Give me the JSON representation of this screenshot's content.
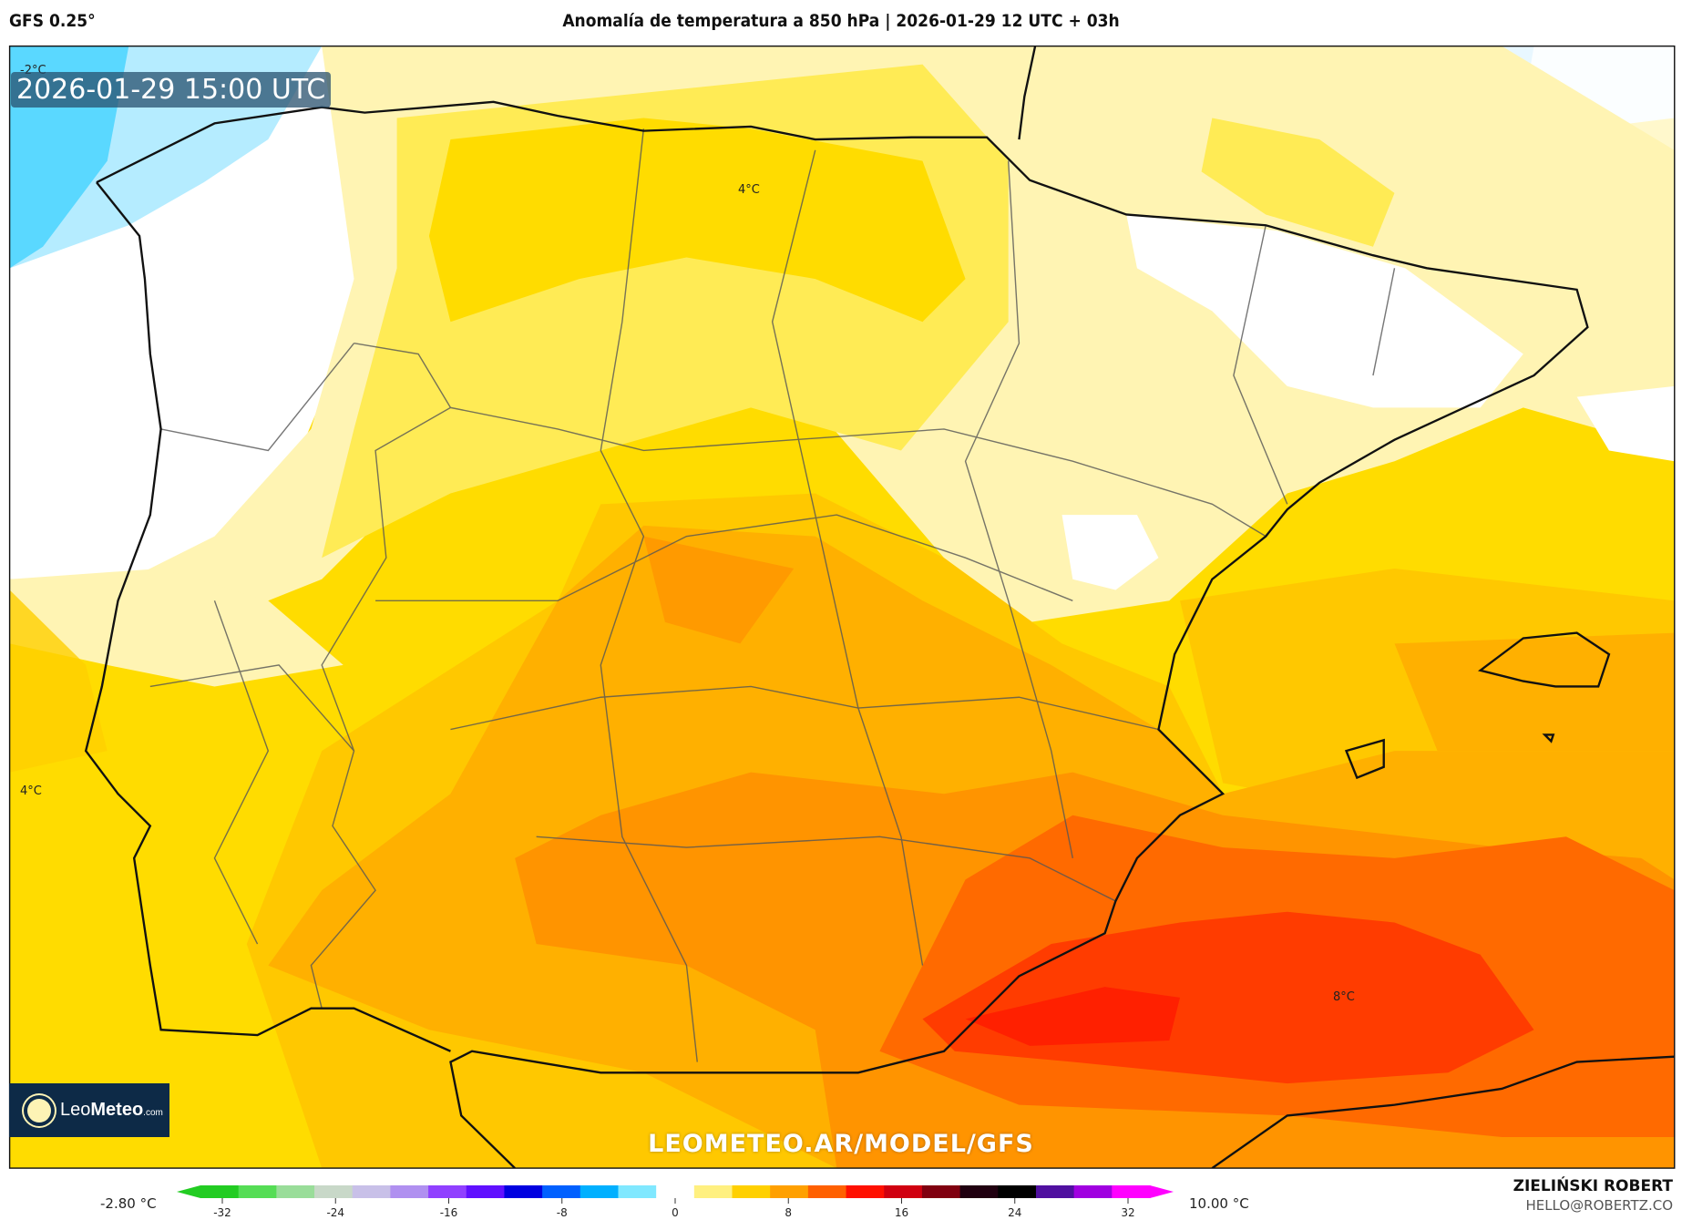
{
  "header": {
    "model": "GFS 0.25°",
    "title": "Anomalía de temperatura a 850 hPa | 2026-01-29 12 UTC + 03h"
  },
  "map": {
    "valid_time": "2026-01-29 15:00 UTC",
    "watermark": "LEOMETEO.AR/MODEL/GFS",
    "contour_labels": [
      "-2°C",
      "4°C",
      "4°C",
      "8°C"
    ],
    "colors": {
      "cyan": "#5ad8ff",
      "light_blue": "#b5ecff",
      "pale_blue": "#e8f7ff",
      "white": "#ffffff",
      "pale_yellow": "#fff4b3",
      "light_yellow": "#ffeb55",
      "yellow": "#ffdc00",
      "gold": "#ffc800",
      "orange": "#ffb000",
      "dark_orange": "#ff9400",
      "orange_red": "#ff6a00",
      "red": "#ff3c00",
      "deep_red": "#ff2000"
    }
  },
  "logo": {
    "brand_light": "Leo",
    "brand_bold": "Meteo",
    "suffix": ".com"
  },
  "colorbar": {
    "min_label": "-2.80 °C",
    "max_label": "10.00 °C",
    "range": [
      -32,
      32
    ],
    "ticks": [
      "-32",
      "-24",
      "-16",
      "-8",
      "0",
      "8",
      "16",
      "24",
      "32"
    ],
    "colors": [
      "#22cc22",
      "#55dd55",
      "#99dd99",
      "#c8d8c8",
      "#c8c0e8",
      "#b090f0",
      "#9040ff",
      "#6010ff",
      "#0000e0",
      "#0060ff",
      "#00b0ff",
      "#80e8ff",
      "#ffffff",
      "#fff080",
      "#ffd000",
      "#ffa000",
      "#ff6000",
      "#ff1000",
      "#d00010",
      "#800010",
      "#200010",
      "#000000",
      "#5010a0",
      "#a000e0",
      "#ff00ff"
    ]
  },
  "credits": {
    "author": "ZIELIŃSKI ROBERT",
    "email": "HELLO@ROBERTZ.CO"
  }
}
